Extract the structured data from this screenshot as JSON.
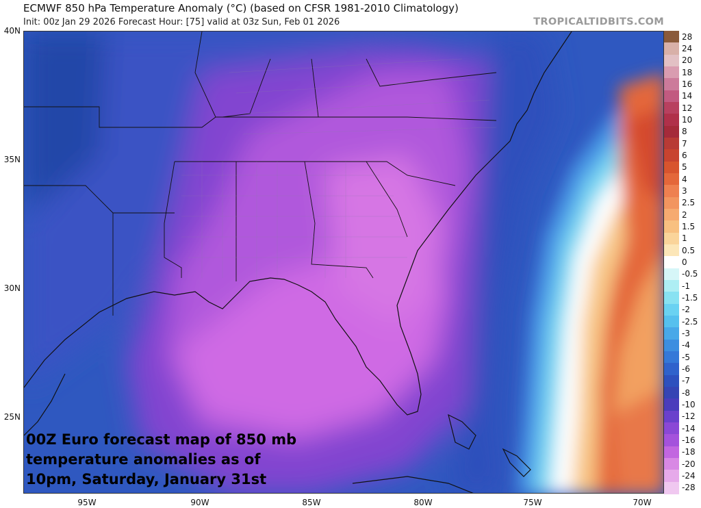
{
  "header": {
    "title": "ECMWF 850 hPa Temperature Anomaly (°C) (based on CFSR 1981-2010 Climatology)",
    "subtitle": "Init: 00z Jan 29 2026   Forecast Hour: [75]   valid at 03z Sun, Feb 01 2026",
    "brand": "TROPICALTIDBITS.COM"
  },
  "caption": "00Z Euro forecast map of 850 mb temperature anomalies as of 10pm, Saturday, January 31st",
  "axes": {
    "lat_labels": [
      "40N",
      "35N",
      "30N",
      "25N"
    ],
    "lon_labels": [
      "95W",
      "90W",
      "85W",
      "80W",
      "75W",
      "70W"
    ]
  },
  "colorbar": {
    "labels": [
      "28",
      "24",
      "20",
      "18",
      "16",
      "14",
      "12",
      "10",
      "8",
      "7",
      "6",
      "5",
      "4",
      "3",
      "2.5",
      "2",
      "1.5",
      "1",
      "0.5",
      "0",
      "-0.5",
      "-1",
      "-1.5",
      "-2",
      "-2.5",
      "-3",
      "-4",
      "-5",
      "-6",
      "-7",
      "-8",
      "-10",
      "-12",
      "-14",
      "-16",
      "-18",
      "-20",
      "-24",
      "-28"
    ],
    "colors": [
      "#8a5a3a",
      "#d8b0a8",
      "#e2c0c4",
      "#d99cb0",
      "#cc7a9a",
      "#c25a80",
      "#b8405f",
      "#b0304a",
      "#a52a3a",
      "#b83a35",
      "#c8432f",
      "#d8542e",
      "#e4673a",
      "#ee8050",
      "#f2955f",
      "#f6aa70",
      "#f8c080",
      "#fad49a",
      "#fce6b8",
      "#ffffff",
      "#d6f6f8",
      "#aeeef4",
      "#88e2f2",
      "#6ad2f2",
      "#56c0ee",
      "#48a8e8",
      "#3c8ee0",
      "#3478d8",
      "#2f62cc",
      "#2d50be",
      "#3544b4",
      "#4a3cbc",
      "#6a40cc",
      "#8a48d6",
      "#a452dc",
      "#c266e0",
      "#d888e4",
      "#e6aaea",
      "#f0c8f0"
    ]
  }
}
